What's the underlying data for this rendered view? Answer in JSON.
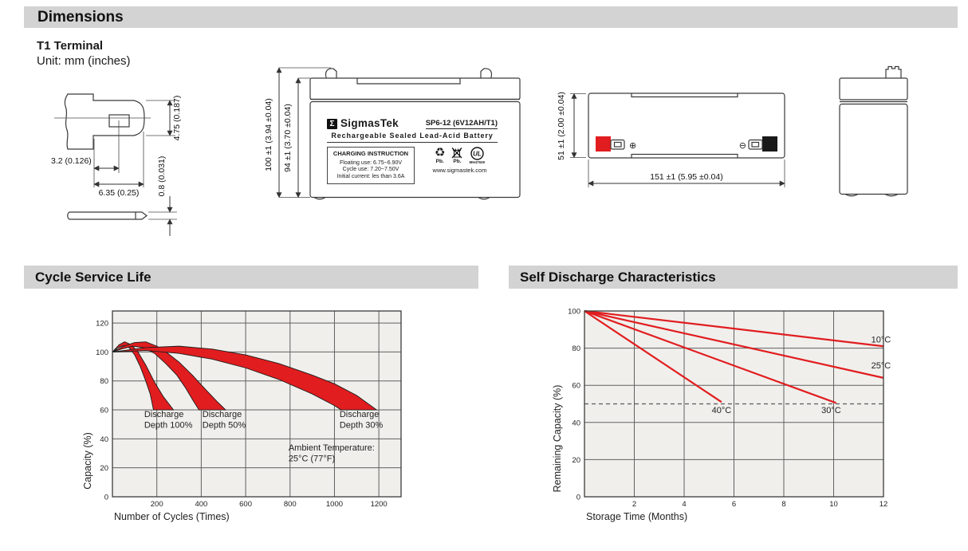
{
  "page": {
    "header": "Dimensions",
    "terminal_title": "T1 Terminal",
    "unit_note": "Unit: mm (inches)"
  },
  "terminal_drawing": {
    "dim_blade_height": "4.75 (0.187)",
    "dim_hole_offset": "3.2 (0.126)",
    "dim_blade_width": "6.35 (0.25)",
    "dim_thickness": "0.8 (0.031)"
  },
  "front_view": {
    "dim_total_height": "100 ±1 (3.94 ±0.04)",
    "dim_case_height": "94 ±1 (3.70 ±0.04)",
    "label": {
      "logo_glyph": "Σ",
      "brand": "SigmasTek",
      "model": "SP6-12 (6V12AH/T1)",
      "subtitle": "Rechargeable Sealed Lead-Acid Battery",
      "charging_title": "CHARGING INSTRUCTION",
      "charging_line1": "Floating use: 6.75~6.90V",
      "charging_line2": "Cycle use: 7.20~7.50V",
      "charging_line3": "Initial current: les than 3.6A",
      "recycle_glyph": "♻",
      "recycle_pb": "Pb.",
      "bin_pb": "Pb.",
      "ul_letters": "UL",
      "ul_code": "MH47929",
      "website": "www.sigmastek.com"
    }
  },
  "top_view": {
    "dim_height": "51 ±1 (2.00 ±0.04)",
    "dim_width": "151 ±1 (5.95 ±0.04)",
    "positive_symbol": "⊕",
    "negative_symbol": "⊖"
  },
  "colors": {
    "accent_red": "#e11d1f",
    "header_bar": "#d3d3d3",
    "plot_bg": "#f0efec",
    "grid": "#606060",
    "plot_border": "#3b3b3b",
    "band_stroke": "#1c1c1c"
  },
  "chart_data": [
    {
      "id": "cycle_service_life",
      "type": "area",
      "title": "Cycle Service Life",
      "xlabel": "Number of Cycles (Times)",
      "ylabel": "Capacity (%)",
      "xlim": [
        0,
        1300
      ],
      "ylim": [
        0,
        128.3
      ],
      "xticks": [
        200,
        400,
        600,
        800,
        1000,
        1200
      ],
      "yticks": [
        0,
        20,
        40,
        60,
        80,
        100,
        120
      ],
      "grid": true,
      "series": [
        {
          "name": "Discharge Depth 100%",
          "upper": [
            [
              0,
              100
            ],
            [
              30,
              105
            ],
            [
              55,
              107
            ],
            [
              85,
              105
            ],
            [
              115,
              100
            ],
            [
              150,
              91
            ],
            [
              190,
              79
            ],
            [
              230,
              69
            ],
            [
              275,
              60
            ]
          ],
          "lower": [
            [
              0,
              100
            ],
            [
              25,
              103
            ],
            [
              50,
              104.5
            ],
            [
              75,
              103
            ],
            [
              100,
              98
            ],
            [
              125,
              90
            ],
            [
              150,
              80
            ],
            [
              170,
              71
            ],
            [
              185,
              60
            ]
          ]
        },
        {
          "name": "Discharge Depth 50%",
          "upper": [
            [
              0,
              100
            ],
            [
              50,
              104
            ],
            [
              100,
              106.5
            ],
            [
              150,
              107
            ],
            [
              200,
              104
            ],
            [
              250,
              99
            ],
            [
              300,
              93
            ],
            [
              360,
              84
            ],
            [
              420,
              74
            ],
            [
              470,
              66
            ],
            [
              510,
              60
            ]
          ],
          "lower": [
            [
              0,
              100
            ],
            [
              40,
              102
            ],
            [
              90,
              104
            ],
            [
              140,
              103
            ],
            [
              190,
              99
            ],
            [
              240,
              92
            ],
            [
              290,
              84
            ],
            [
              330,
              75
            ],
            [
              365,
              66
            ],
            [
              390,
              60
            ]
          ]
        },
        {
          "name": "Discharge Depth 30%",
          "upper": [
            [
              0,
              100
            ],
            [
              150,
              103
            ],
            [
              300,
              104
            ],
            [
              450,
              102
            ],
            [
              600,
              98
            ],
            [
              750,
              92
            ],
            [
              900,
              84
            ],
            [
              1000,
              78
            ],
            [
              1100,
              70
            ],
            [
              1190,
              60
            ]
          ],
          "lower": [
            [
              0,
              100
            ],
            [
              150,
              101
            ],
            [
              300,
              99
            ],
            [
              450,
              95
            ],
            [
              600,
              89
            ],
            [
              750,
              81
            ],
            [
              900,
              71
            ],
            [
              1000,
              63
            ],
            [
              1030,
              60
            ]
          ]
        }
      ],
      "annotations": [
        {
          "lines": [
            "Discharge",
            "Depth 100%"
          ],
          "x": 143,
          "y": 55,
          "anchor": "start"
        },
        {
          "lines": [
            "Discharge",
            "Depth 50%"
          ],
          "x": 405,
          "y": 55,
          "anchor": "start"
        },
        {
          "lines": [
            "Discharge",
            "Depth 30%"
          ],
          "x": 1023,
          "y": 55,
          "anchor": "start"
        },
        {
          "lines": [
            "Ambient Temperature:",
            "25°C (77°F)"
          ],
          "x": 793,
          "y": 32,
          "anchor": "start"
        }
      ]
    },
    {
      "id": "self_discharge",
      "type": "line",
      "title": "Self Discharge Characteristics",
      "xlabel": "Storage Time (Months)",
      "ylabel": "Remaining Capacity (%)",
      "xlim": [
        0,
        12
      ],
      "ylim": [
        0,
        100
      ],
      "xticks": [
        2,
        4,
        6,
        8,
        10,
        12
      ],
      "yticks": [
        0,
        20,
        40,
        60,
        80,
        100
      ],
      "grid": true,
      "dashed_line_y": 50,
      "series": [
        {
          "name": "10°C",
          "points": [
            [
              0,
              100
            ],
            [
              12,
              81
            ]
          ]
        },
        {
          "name": "25°C",
          "points": [
            [
              0,
              100
            ],
            [
              12,
              64
            ]
          ]
        },
        {
          "name": "30°C",
          "points": [
            [
              0,
              100
            ],
            [
              10.1,
              50.5
            ]
          ]
        },
        {
          "name": "40°C",
          "points": [
            [
              0,
              100
            ],
            [
              5.5,
              51
            ]
          ]
        }
      ],
      "annotations": [
        {
          "lines": [
            "10°C"
          ],
          "x": 11.9,
          "y": 83,
          "anchor": "middle"
        },
        {
          "lines": [
            "25°C"
          ],
          "x": 11.9,
          "y": 69,
          "anchor": "middle"
        },
        {
          "lines": [
            "30°C"
          ],
          "x": 9.9,
          "y": 45,
          "anchor": "middle"
        },
        {
          "lines": [
            "40°C"
          ],
          "x": 5.5,
          "y": 45,
          "anchor": "middle"
        }
      ]
    }
  ]
}
